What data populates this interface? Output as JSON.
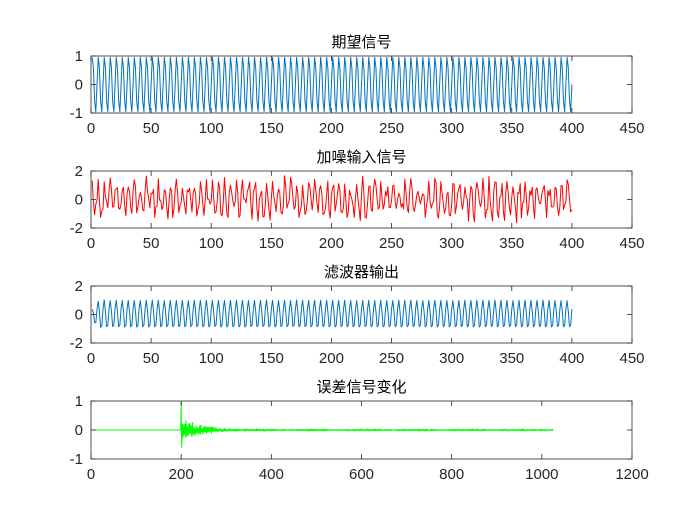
{
  "chart_data": [
    {
      "type": "line",
      "title": "期望信号",
      "xlim": [
        0,
        450
      ],
      "ylim": [
        -1,
        1
      ],
      "xticks": [
        0,
        50,
        100,
        150,
        200,
        250,
        300,
        350,
        400,
        450
      ],
      "yticks": [
        -1,
        0,
        1
      ],
      "grid": false,
      "color": "#0072BD",
      "signal": {
        "kind": "sinusoid",
        "x_range": [
          1,
          400
        ],
        "amplitude": 1,
        "period_samples": 5
      }
    },
    {
      "type": "line",
      "title": "加噪输入信号",
      "xlim": [
        0,
        450
      ],
      "ylim": [
        -2,
        2
      ],
      "xticks": [
        0,
        50,
        100,
        150,
        200,
        250,
        300,
        350,
        400,
        450
      ],
      "yticks": [
        -2,
        0,
        2
      ],
      "grid": false,
      "color": "#FF0000",
      "signal": {
        "kind": "noisy_sinusoid",
        "x_range": [
          1,
          400
        ],
        "amplitude": 1,
        "period_samples": 5,
        "noise_amplitude": 0.45
      }
    },
    {
      "type": "line",
      "title": "滤波器输出",
      "xlim": [
        0,
        450
      ],
      "ylim": [
        -2,
        2
      ],
      "xticks": [
        0,
        50,
        100,
        150,
        200,
        250,
        300,
        350,
        400,
        450
      ],
      "yticks": [
        -2,
        0,
        2
      ],
      "grid": false,
      "color": "#0072BD",
      "signal": {
        "kind": "filter_output",
        "x_range": [
          1,
          400
        ],
        "amplitude": 1,
        "period_samples": 5,
        "transient_peak": 1.35,
        "transient_length": 12
      }
    },
    {
      "type": "line",
      "title": "误差信号变化",
      "xlim": [
        0,
        1200
      ],
      "ylim": [
        -1,
        1
      ],
      "xticks": [
        0,
        200,
        400,
        600,
        800,
        1000,
        1200
      ],
      "yticks": [
        -1,
        0,
        1
      ],
      "grid": false,
      "color": "#00FF00",
      "signal": {
        "kind": "error_decay",
        "x_range": [
          1,
          1025
        ],
        "onset_x": 200,
        "peak": 1.0,
        "trough": -0.6,
        "decay_length": 40,
        "residual_amplitude": 0.04
      }
    }
  ]
}
